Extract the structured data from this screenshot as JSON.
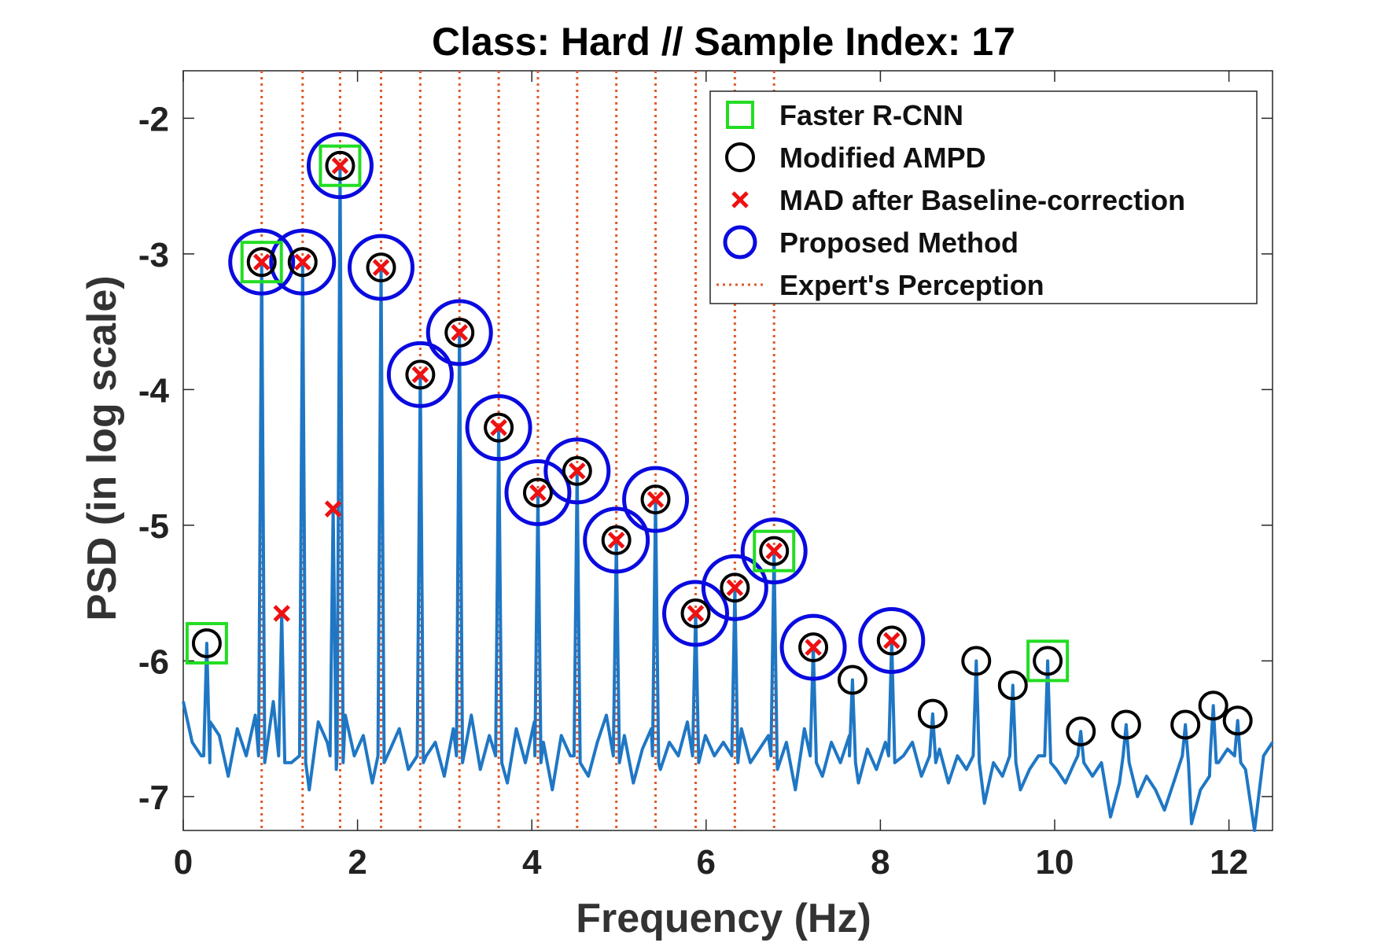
{
  "chart_data": {
    "type": "line",
    "title": "Class: Hard  //  Sample Index: 17",
    "xlabel": "Frequency (Hz)",
    "ylabel": "PSD (in log scale)",
    "xlim": [
      0,
      12.5
    ],
    "ylim": [
      -7.25,
      -1.65
    ],
    "x_ticks": [
      0,
      2,
      4,
      6,
      8,
      10,
      12
    ],
    "y_ticks": [
      -2,
      -3,
      -4,
      -5,
      -6,
      -7
    ],
    "legend_position": "top-right",
    "colors": {
      "signal": "#1f77c4",
      "faster_rcnn": "#22dd22",
      "modified_ampd": "#000000",
      "mad": "#ee1111",
      "proposed": "#0a0ae0",
      "expert": "#e05a2b"
    },
    "legend": [
      {
        "key": "faster_rcnn",
        "label": "Faster R-CNN"
      },
      {
        "key": "modified_ampd",
        "label": "Modified AMPD"
      },
      {
        "key": "mad",
        "label": "MAD after Baseline-correction"
      },
      {
        "key": "proposed",
        "label": "Proposed Method"
      },
      {
        "key": "expert",
        "label": "Expert's Perception"
      }
    ],
    "series": [
      {
        "name": "PSD",
        "baseline": [
          -6.3,
          -6.6,
          -6.7,
          -6.45,
          -6.55,
          -6.85,
          -6.5,
          -6.7,
          -6.4,
          -6.9,
          -6.3,
          -6.6,
          -6.75,
          -6.5,
          -6.95,
          -6.45,
          -6.6,
          -6.8,
          -6.4,
          -6.7,
          -6.55,
          -6.9,
          -6.35,
          -6.65,
          -6.5,
          -6.8,
          -6.45,
          -6.7,
          -6.6,
          -6.85,
          -6.5,
          -6.7,
          -6.4,
          -6.8,
          -6.55,
          -6.65,
          -6.9,
          -6.5,
          -6.75,
          -6.45,
          -6.6,
          -6.95,
          -6.55,
          -6.7,
          -6.5,
          -6.85,
          -6.6,
          -6.4,
          -6.75,
          -6.55,
          -6.9,
          -6.65,
          -6.5,
          -6.8,
          -6.6,
          -6.7,
          -6.45,
          -6.85,
          -6.55,
          -6.7,
          -6.6,
          -6.9,
          -6.5,
          -6.75,
          -6.65,
          -6.55,
          -6.8,
          -6.6,
          -6.95,
          -6.5,
          -6.7,
          -6.85,
          -6.6,
          -6.75,
          -6.55,
          -6.9,
          -6.65,
          -6.8,
          -6.6,
          -7.0,
          -6.7,
          -6.6,
          -6.85,
          -6.75,
          -6.65,
          -6.9,
          -6.7,
          -6.8,
          -6.6,
          -7.05,
          -6.75,
          -6.85,
          -6.7,
          -6.95,
          -6.8,
          -6.7,
          -7.1,
          -6.8,
          -6.9,
          -6.75,
          -7.0,
          -6.85,
          -6.75,
          -7.15,
          -6.9,
          -6.8,
          -7.0,
          -6.85,
          -6.95,
          -7.1,
          -6.9,
          -6.8,
          -7.2,
          -6.95,
          -6.85,
          -6.75,
          -6.65,
          -6.95,
          -6.8,
          -7.25,
          -6.7,
          -6.6
        ],
        "peaks": [
          {
            "x": 0.27,
            "y": -5.87
          },
          {
            "x": 0.9,
            "y": -3.06
          },
          {
            "x": 1.13,
            "y": -5.65
          },
          {
            "x": 1.37,
            "y": -3.06
          },
          {
            "x": 1.72,
            "y": -4.88
          },
          {
            "x": 1.8,
            "y": -2.35
          },
          {
            "x": 2.27,
            "y": -3.1
          },
          {
            "x": 2.72,
            "y": -3.89
          },
          {
            "x": 3.17,
            "y": -3.58
          },
          {
            "x": 3.62,
            "y": -4.28
          },
          {
            "x": 4.07,
            "y": -4.76
          },
          {
            "x": 4.52,
            "y": -4.6
          },
          {
            "x": 4.97,
            "y": -5.11
          },
          {
            "x": 5.42,
            "y": -4.81
          },
          {
            "x": 5.88,
            "y": -5.65
          },
          {
            "x": 6.33,
            "y": -5.46
          },
          {
            "x": 6.78,
            "y": -5.19
          },
          {
            "x": 7.23,
            "y": -5.9
          },
          {
            "x": 7.68,
            "y": -6.14
          },
          {
            "x": 8.13,
            "y": -5.85
          },
          {
            "x": 8.6,
            "y": -6.39
          },
          {
            "x": 9.1,
            "y": -6.0
          },
          {
            "x": 9.52,
            "y": -6.18
          },
          {
            "x": 9.92,
            "y": -6.0
          },
          {
            "x": 10.3,
            "y": -6.52
          },
          {
            "x": 10.82,
            "y": -6.47
          },
          {
            "x": 11.5,
            "y": -6.47
          },
          {
            "x": 11.82,
            "y": -6.33
          },
          {
            "x": 12.1,
            "y": -6.44
          }
        ]
      }
    ],
    "faster_rcnn": [
      {
        "x": 0.27,
        "y": -5.87
      },
      {
        "x": 0.9,
        "y": -3.06
      },
      {
        "x": 1.8,
        "y": -2.35
      },
      {
        "x": 6.78,
        "y": -5.19
      },
      {
        "x": 9.92,
        "y": -6.0
      }
    ],
    "modified_ampd": [
      {
        "x": 0.27,
        "y": -5.87
      },
      {
        "x": 0.9,
        "y": -3.06
      },
      {
        "x": 1.37,
        "y": -3.06
      },
      {
        "x": 1.8,
        "y": -2.35
      },
      {
        "x": 2.27,
        "y": -3.1
      },
      {
        "x": 2.72,
        "y": -3.89
      },
      {
        "x": 3.17,
        "y": -3.58
      },
      {
        "x": 3.62,
        "y": -4.28
      },
      {
        "x": 4.07,
        "y": -4.76
      },
      {
        "x": 4.52,
        "y": -4.6
      },
      {
        "x": 4.97,
        "y": -5.11
      },
      {
        "x": 5.42,
        "y": -4.81
      },
      {
        "x": 5.88,
        "y": -5.65
      },
      {
        "x": 6.33,
        "y": -5.46
      },
      {
        "x": 6.78,
        "y": -5.19
      },
      {
        "x": 7.23,
        "y": -5.9
      },
      {
        "x": 7.68,
        "y": -6.14
      },
      {
        "x": 8.13,
        "y": -5.85
      },
      {
        "x": 8.6,
        "y": -6.39
      },
      {
        "x": 9.1,
        "y": -6.0
      },
      {
        "x": 9.52,
        "y": -6.18
      },
      {
        "x": 9.92,
        "y": -6.0
      },
      {
        "x": 10.3,
        "y": -6.52
      },
      {
        "x": 10.82,
        "y": -6.47
      },
      {
        "x": 11.5,
        "y": -6.47
      },
      {
        "x": 11.82,
        "y": -6.33
      },
      {
        "x": 12.1,
        "y": -6.44
      }
    ],
    "mad_after_baseline_correction": [
      {
        "x": 0.9,
        "y": -3.06
      },
      {
        "x": 1.13,
        "y": -5.65
      },
      {
        "x": 1.37,
        "y": -3.06
      },
      {
        "x": 1.72,
        "y": -4.88
      },
      {
        "x": 1.8,
        "y": -2.35
      },
      {
        "x": 2.27,
        "y": -3.1
      },
      {
        "x": 2.72,
        "y": -3.89
      },
      {
        "x": 3.17,
        "y": -3.58
      },
      {
        "x": 3.62,
        "y": -4.28
      },
      {
        "x": 4.07,
        "y": -4.76
      },
      {
        "x": 4.52,
        "y": -4.6
      },
      {
        "x": 4.97,
        "y": -5.11
      },
      {
        "x": 5.42,
        "y": -4.81
      },
      {
        "x": 5.88,
        "y": -5.65
      },
      {
        "x": 6.33,
        "y": -5.46
      },
      {
        "x": 6.78,
        "y": -5.19
      },
      {
        "x": 7.23,
        "y": -5.9
      },
      {
        "x": 8.13,
        "y": -5.85
      }
    ],
    "proposed_method": [
      {
        "x": 0.9,
        "y": -3.06
      },
      {
        "x": 1.37,
        "y": -3.06
      },
      {
        "x": 1.8,
        "y": -2.35
      },
      {
        "x": 2.27,
        "y": -3.1
      },
      {
        "x": 2.72,
        "y": -3.89
      },
      {
        "x": 3.17,
        "y": -3.58
      },
      {
        "x": 3.62,
        "y": -4.28
      },
      {
        "x": 4.07,
        "y": -4.76
      },
      {
        "x": 4.52,
        "y": -4.6
      },
      {
        "x": 4.97,
        "y": -5.11
      },
      {
        "x": 5.42,
        "y": -4.81
      },
      {
        "x": 5.88,
        "y": -5.65
      },
      {
        "x": 6.33,
        "y": -5.46
      },
      {
        "x": 6.78,
        "y": -5.19
      },
      {
        "x": 7.23,
        "y": -5.9
      },
      {
        "x": 8.13,
        "y": -5.85
      }
    ],
    "experts_perception": [
      0.9,
      1.37,
      1.8,
      2.27,
      2.72,
      3.17,
      3.62,
      4.07,
      4.52,
      4.97,
      5.42,
      5.88,
      6.33,
      6.78
    ]
  }
}
